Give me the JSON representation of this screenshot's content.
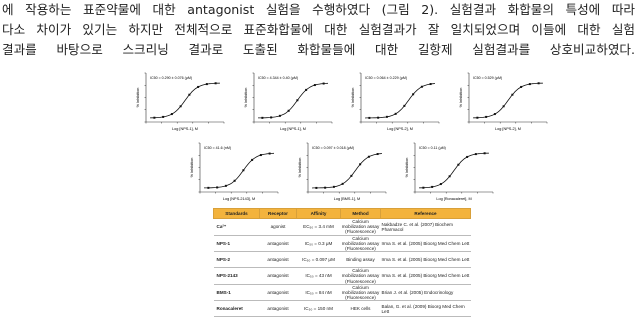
{
  "paragraph": {
    "lines": [
      "에 작용하는 표준약물에 대한 antagonist 실험을 수행하였다 (그림 2).  실험결과 화합물의 특성에 따라",
      "다소 차이가 있기는 하지만 전체적으로 표준화합물에 대한 실험결과가 잘 일치되었으며 이들에 대한 실험",
      "결과를 바탕으로 스크리닝 결과로 도출된 화합물들에 대한 길항제 실험결과를 상호비교하였다."
    ]
  },
  "figures": [
    {
      "ic50": "IC50 = 0.290 ± 0.076 (μM)",
      "y_label": "% Inhibition",
      "x_label": "Log [NPS-1], M"
    },
    {
      "ic50": "IC50 = 4.344 ± 0.40 (μM)",
      "y_label": "% Inhibition",
      "x_label": "Log [NPS-1], M"
    },
    {
      "ic50": "IC50 = 0.064 ± 0.229 (μM)",
      "y_label": "% Inhibition",
      "x_label": "Log [NPS-2], M"
    },
    {
      "ic50": "IC50 = 0.529 (μM)",
      "y_label": "% Inhibition",
      "x_label": "Log [NPS-2], M"
    },
    {
      "ic50": "IC50 = 41.6 (nM)",
      "y_label": "% Inhibition",
      "x_label": "Log [NPS-2143], M"
    },
    {
      "ic50": "IC50 = 0.097 ± 0.018 (μM)",
      "y_label": "% Inhibition",
      "x_label": "Log [BMS-1], M"
    },
    {
      "ic50": "IC50 = 0.11 (μM)",
      "y_label": "% Inhibition",
      "x_label": "Log [Ronacaleret], M"
    }
  ],
  "table": {
    "header": [
      "Standards",
      "Receptor",
      "Affinity",
      "Method",
      "Reference"
    ],
    "rows": [
      [
        "Ca²⁺",
        "agonist",
        "EC₅₀ = 3.4 mM",
        "Calcium mobilization assay (Fluorescence)",
        "Nakbadze C. et al. (2007) Biochem Pharmacol"
      ],
      [
        "NPS-1",
        "antagonist",
        "IC₅₀ = 0.3 μM",
        "Calcium mobilization assay (Fluorescence)",
        "Irma S. et al. (2005) Bioorg Med Chem Lett"
      ],
      [
        "NPS-2",
        "antagonist",
        "IC₅₀ = 0.097 μM",
        "Binding assay",
        "Irma S. et al. (2005) Bioorg Med Chem Lett"
      ],
      [
        "NPS-2143",
        "antagonist",
        "IC₅₀ = 43 nM",
        "Calcium mobilization assay (Fluorescence)",
        "Irma S. et al. (2005) Bioorg Med Chem Lett"
      ],
      [
        "BMS-1",
        "antagonist",
        "IC₅₀ = 84 nM",
        "Calcium mobilization assay (Fluorescence)",
        "Brian J. et al. (2005) Endocrinology"
      ],
      [
        "Ronacaleret",
        "antagonist",
        "IC₅₀ = 150 nM",
        "HEK cells",
        "Balan, G. et al. (2009) Bioorg Med Chem Lett"
      ]
    ]
  }
}
